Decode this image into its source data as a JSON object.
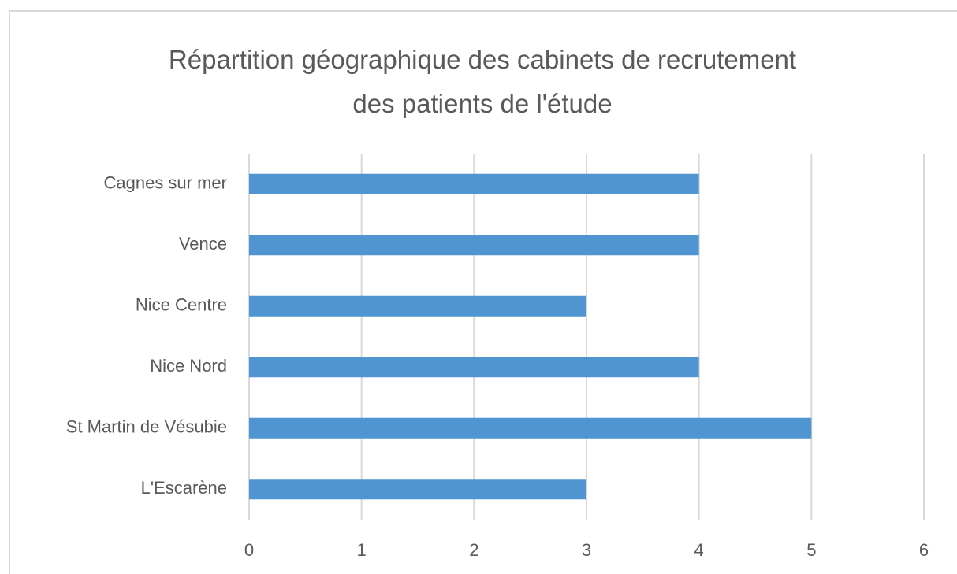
{
  "chart_data": {
    "type": "bar",
    "orientation": "horizontal",
    "title": "Répartition géographique des cabinets de recrutement des patients de l'étude",
    "categories": [
      "Cagnes sur mer",
      "Vence",
      "Nice Centre",
      "Nice Nord",
      "St Martin de Vésubie",
      "L'Escarène"
    ],
    "values": [
      4,
      4,
      3,
      4,
      5,
      3
    ],
    "color": "#4e95d1",
    "xlim": [
      0,
      6
    ],
    "xticks": [
      0,
      1,
      2,
      3,
      4,
      5,
      6
    ],
    "grid": true
  }
}
